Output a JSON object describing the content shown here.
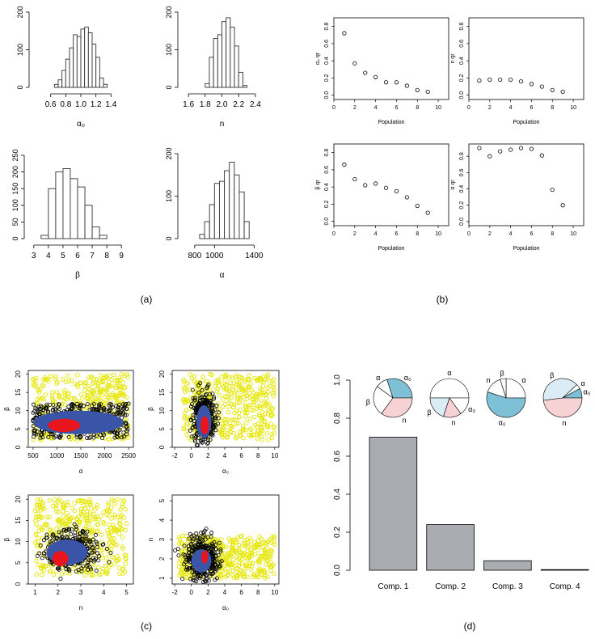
{
  "panel_labels": [
    "(a)",
    "(b)",
    "(c)",
    "(d)"
  ],
  "colors": {
    "bar_edge": "#333333",
    "bar_fill_d": "#a9acb0",
    "yellow": "#e6e600",
    "dark": "#000000",
    "blue": "#3a55a8",
    "red": "#e8141e",
    "pie_blue": "#7ec0d6",
    "pie_light": "#dcecf6",
    "pie_pink": "#f6d2d4"
  },
  "chart_data": [
    {
      "type": "bar",
      "panel": "(a)",
      "xlabel": "α₀",
      "bins": [
        0.65,
        0.7,
        0.75,
        0.8,
        0.85,
        0.9,
        0.95,
        1.0,
        1.05,
        1.1,
        1.15,
        1.2,
        1.25,
        1.3,
        1.35
      ],
      "counts": [
        8,
        20,
        45,
        75,
        105,
        140,
        135,
        155,
        160,
        145,
        115,
        80,
        25,
        8
      ],
      "xlim": [
        0.55,
        1.45
      ],
      "ylim": [
        0,
        200
      ],
      "xticks": [
        {
          "v": 0.6,
          "t": "0.6"
        },
        {
          "v": 0.8,
          "t": "0.8"
        },
        {
          "v": 1.0,
          "t": "1.0"
        },
        {
          "v": 1.2,
          "t": "1.2"
        },
        {
          "v": 1.4,
          "t": "1.4"
        }
      ],
      "yticks": [
        {
          "v": 0,
          "t": "0"
        },
        {
          "v": 100,
          "t": "100"
        },
        {
          "v": 200,
          "t": "200"
        }
      ]
    },
    {
      "type": "bar",
      "panel": "(a)",
      "xlabel": "n",
      "bins": [
        1.8,
        1.85,
        1.9,
        1.95,
        2.0,
        2.05,
        2.1,
        2.15,
        2.2,
        2.25,
        2.3
      ],
      "counts": [
        10,
        80,
        130,
        140,
        175,
        185,
        160,
        110,
        40,
        5
      ],
      "xlim": [
        1.58,
        2.42
      ],
      "ylim": [
        0,
        200
      ],
      "xticks": [
        {
          "v": 1.6,
          "t": "1.6"
        },
        {
          "v": 1.8,
          "t": "1.8"
        },
        {
          "v": 2.0,
          "t": "2.0"
        },
        {
          "v": 2.2,
          "t": "2.2"
        },
        {
          "v": 2.4,
          "t": "2.4"
        }
      ],
      "yticks": [
        {
          "v": 0,
          "t": "0"
        },
        {
          "v": 100,
          "t": "100"
        },
        {
          "v": 200,
          "t": "200"
        }
      ]
    },
    {
      "type": "bar",
      "panel": "(a)",
      "xlabel": "β",
      "bins": [
        3.5,
        4.0,
        4.5,
        5.0,
        5.5,
        6.0,
        6.5,
        7.0,
        7.5,
        8.0
      ],
      "counts": [
        10,
        150,
        200,
        210,
        180,
        155,
        100,
        35,
        10
      ],
      "xlim": [
        2.9,
        9.1
      ],
      "ylim": [
        0,
        250
      ],
      "xticks": [
        {
          "v": 3,
          "t": "3"
        },
        {
          "v": 4,
          "t": "4"
        },
        {
          "v": 5,
          "t": "5"
        },
        {
          "v": 6,
          "t": "6"
        },
        {
          "v": 7,
          "t": "7"
        },
        {
          "v": 8,
          "t": "8"
        },
        {
          "v": 9,
          "t": "9"
        }
      ],
      "yticks": [
        {
          "v": 0,
          "t": "0"
        },
        {
          "v": 50,
          "t": "50"
        },
        {
          "v": 100,
          "t": "100"
        },
        {
          "v": 150,
          "t": "150"
        },
        {
          "v": 200,
          "t": "200"
        },
        {
          "v": 250,
          "t": "250"
        }
      ]
    },
    {
      "type": "bar",
      "panel": "(a)",
      "xlabel": "α",
      "bins": [
        850,
        900,
        950,
        1000,
        1050,
        1100,
        1150,
        1200,
        1250,
        1300,
        1350
      ],
      "counts": [
        10,
        40,
        80,
        130,
        135,
        160,
        180,
        150,
        110,
        40
      ],
      "xlim": [
        720,
        1430
      ],
      "ylim": [
        0,
        200
      ],
      "xticks": [
        {
          "v": 800,
          "t": "800"
        },
        {
          "v": 1000,
          "t": "1000"
        },
        {
          "v": 1400,
          "t": "1400"
        }
      ],
      "yticks": [
        {
          "v": 0,
          "t": "0"
        },
        {
          "v": 100,
          "t": "100"
        },
        {
          "v": 200,
          "t": "200"
        }
      ]
    },
    {
      "type": "scatter",
      "panel": "(b)",
      "ylabel": "α₀ qr",
      "xlabel": "Population",
      "x": [
        1,
        2,
        3,
        4,
        5,
        6,
        7,
        8,
        9
      ],
      "y": [
        0.72,
        0.37,
        0.26,
        0.21,
        0.15,
        0.15,
        0.11,
        0.06,
        0.04
      ],
      "xlim": [
        0,
        11
      ],
      "ylim": [
        -0.05,
        0.9
      ]
    },
    {
      "type": "scatter",
      "panel": "(b)",
      "ylabel": "n qr",
      "xlabel": "Population",
      "x": [
        1,
        2,
        3,
        4,
        5,
        6,
        7,
        8,
        9
      ],
      "y": [
        0.17,
        0.18,
        0.18,
        0.18,
        0.16,
        0.13,
        0.1,
        0.06,
        0.04
      ],
      "xlim": [
        0,
        11
      ],
      "ylim": [
        -0.05,
        0.9
      ]
    },
    {
      "type": "scatter",
      "panel": "(b)",
      "ylabel": "β qr",
      "xlabel": "Population",
      "x": [
        1,
        2,
        3,
        4,
        5,
        6,
        7,
        8,
        9
      ],
      "y": [
        0.66,
        0.49,
        0.42,
        0.44,
        0.39,
        0.35,
        0.28,
        0.18,
        0.1
      ],
      "xlim": [
        0,
        11
      ],
      "ylim": [
        -0.05,
        0.9
      ]
    },
    {
      "type": "scatter",
      "panel": "(b)",
      "ylabel": "α qr",
      "xlabel": "Population",
      "x": [
        1,
        2,
        3,
        4,
        5,
        6,
        7,
        8,
        9
      ],
      "y": [
        0.9,
        0.8,
        0.86,
        0.88,
        0.9,
        0.89,
        0.81,
        0.39,
        0.2
      ],
      "xlim": [
        0,
        11
      ],
      "ylim": [
        -0.05,
        0.95
      ]
    },
    {
      "type": "scatter",
      "panel": "(c)",
      "xlabel": "α",
      "ylabel": "β",
      "xlim": [
        400,
        2600
      ],
      "ylim": [
        0,
        21
      ],
      "xticks": [
        {
          "v": 500,
          "t": "500"
        },
        {
          "v": 1000,
          "t": "1000"
        },
        {
          "v": 1500,
          "t": "1500"
        },
        {
          "v": 2000,
          "t": "2000"
        },
        {
          "v": 2500,
          "t": "2500"
        }
      ],
      "yticks": [
        {
          "v": 0,
          "t": "0"
        },
        {
          "v": 5,
          "t": "5"
        },
        {
          "v": 10,
          "t": "10"
        },
        {
          "v": 15,
          "t": "15"
        },
        {
          "v": 20,
          "t": "20"
        }
      ],
      "layers": {
        "yellow": {
          "x": [
            500,
            2500
          ],
          "y": [
            2,
            20
          ]
        },
        "black": {
          "x": [
            500,
            2500
          ],
          "y": [
            2.5,
            12
          ],
          "cx": 1500,
          "cy": 7
        },
        "blue": {
          "cx": 1450,
          "cy": 6.8,
          "rx": 950,
          "ry": 3.2
        },
        "red": {
          "cx": 1150,
          "cy": 6,
          "rx": 340,
          "ry": 1.8
        }
      }
    },
    {
      "type": "scatter",
      "panel": "(c)",
      "xlabel": "α₀",
      "ylabel": "β",
      "xlim": [
        -2.3,
        10.5
      ],
      "ylim": [
        0,
        21
      ],
      "xticks": [
        {
          "v": -2,
          "t": "-2"
        },
        {
          "v": 0,
          "t": "0"
        },
        {
          "v": 2,
          "t": "2"
        },
        {
          "v": 4,
          "t": "4"
        },
        {
          "v": 6,
          "t": "6"
        },
        {
          "v": 8,
          "t": "8"
        },
        {
          "v": 10,
          "t": "10"
        }
      ],
      "yticks": [
        {
          "v": 0,
          "t": "0"
        },
        {
          "v": 5,
          "t": "5"
        },
        {
          "v": 10,
          "t": "10"
        },
        {
          "v": 15,
          "t": "15"
        },
        {
          "v": 20,
          "t": "20"
        }
      ],
      "layers": {
        "yellow": {
          "x": [
            -1,
            10
          ],
          "y": [
            2,
            20
          ]
        },
        "black": {
          "cx": 1.5,
          "cy": 8,
          "rx": 1.5,
          "ry": 7
        },
        "blue": {
          "cx": 1.5,
          "cy": 7,
          "rx": 0.9,
          "ry": 4.5
        },
        "red": {
          "cx": 1.6,
          "cy": 6,
          "rx": 0.5,
          "ry": 2.5
        }
      }
    },
    {
      "type": "scatter",
      "panel": "(c)",
      "xlabel": "n",
      "ylabel": "β",
      "xlim": [
        0.7,
        5.3
      ],
      "ylim": [
        0,
        21
      ],
      "xticks": [
        {
          "v": 1,
          "t": "1"
        },
        {
          "v": 2,
          "t": "2"
        },
        {
          "v": 3,
          "t": "3"
        },
        {
          "v": 4,
          "t": "4"
        },
        {
          "v": 5,
          "t": "5"
        }
      ],
      "yticks": [
        {
          "v": 0,
          "t": "0"
        },
        {
          "v": 5,
          "t": "5"
        },
        {
          "v": 10,
          "t": "10"
        },
        {
          "v": 15,
          "t": "15"
        },
        {
          "v": 20,
          "t": "20"
        }
      ],
      "layers": {
        "yellow": {
          "x": [
            1,
            5
          ],
          "y": [
            2,
            20
          ]
        },
        "black": {
          "cx": 2.6,
          "cy": 8,
          "rx": 1.3,
          "ry": 5
        },
        "blue": {
          "cx": 2.4,
          "cy": 7.5,
          "rx": 0.9,
          "ry": 3
        },
        "red": {
          "cx": 2.1,
          "cy": 6,
          "rx": 0.35,
          "ry": 1.8
        }
      }
    },
    {
      "type": "scatter",
      "panel": "(c)",
      "xlabel": "α₀",
      "ylabel": "n",
      "xlim": [
        -2.3,
        10.5
      ],
      "ylim": [
        0.7,
        5.3
      ],
      "xticks": [
        {
          "v": -2,
          "t": "-2"
        },
        {
          "v": 0,
          "t": "0"
        },
        {
          "v": 2,
          "t": "2"
        },
        {
          "v": 4,
          "t": "4"
        },
        {
          "v": 6,
          "t": "6"
        },
        {
          "v": 8,
          "t": "8"
        },
        {
          "v": 10,
          "t": "10"
        }
      ],
      "yticks": [
        {
          "v": 1,
          "t": "1"
        },
        {
          "v": 2,
          "t": "2"
        },
        {
          "v": 3,
          "t": "3"
        },
        {
          "v": 4,
          "t": "4"
        },
        {
          "v": 5,
          "t": "5"
        }
      ],
      "layers": {
        "yellow": {
          "x": [
            -1.5,
            10
          ],
          "y": [
            1,
            3.2
          ]
        },
        "black": {
          "cx": 1.2,
          "cy": 2,
          "rx": 2.2,
          "ry": 1.2
        },
        "blue": {
          "cx": 1.2,
          "cy": 1.9,
          "rx": 1.2,
          "ry": 0.6
        },
        "red": {
          "cx": 1.6,
          "cy": 2.1,
          "rx": 0.4,
          "ry": 0.35
        }
      }
    },
    {
      "type": "bar",
      "panel": "(d)",
      "categories": [
        "Comp. 1",
        "Comp. 2",
        "Comp. 3",
        "Comp. 4"
      ],
      "values": [
        0.7,
        0.24,
        0.05,
        0.0
      ],
      "ylim": [
        0,
        1.0
      ],
      "yticks": [
        {
          "v": 0,
          "t": "0.0"
        },
        {
          "v": 0.2,
          "t": "0.2"
        },
        {
          "v": 0.4,
          "t": "0.4"
        },
        {
          "v": 0.6,
          "t": "0.6"
        },
        {
          "v": 0.8,
          "t": "0.8"
        },
        {
          "v": 1.0,
          "t": "1.0"
        }
      ],
      "pies": [
        {
          "labels": [
            "α₀",
            "α",
            "β",
            "n"
          ],
          "values": [
            0.3,
            0.1,
            0.25,
            0.35
          ],
          "colors": [
            "#7ec0d6",
            "#ffffff",
            "#ffffff",
            "#f6d2d4"
          ]
        },
        {
          "labels": [
            "α",
            "β",
            "n",
            "α₀"
          ],
          "values": [
            0.5,
            0.2,
            0.15,
            0.15
          ],
          "colors": [
            "#ffffff",
            "#dcecf6",
            "#f6d2d4",
            "#ffffff"
          ]
        },
        {
          "labels": [
            "α",
            "β",
            "n",
            "α₀"
          ],
          "values": [
            0.25,
            0.05,
            0.15,
            0.55
          ],
          "colors": [
            "#ffffff",
            "#ffffff",
            "#ffffff",
            "#7ec0d6"
          ]
        },
        {
          "labels": [
            "α₀",
            "α",
            "β",
            "n"
          ],
          "values": [
            0.08,
            0.04,
            0.4,
            0.48
          ],
          "colors": [
            "#7ec0d6",
            "#ffffff",
            "#dcecf6",
            "#f6d2d4"
          ]
        }
      ]
    }
  ]
}
